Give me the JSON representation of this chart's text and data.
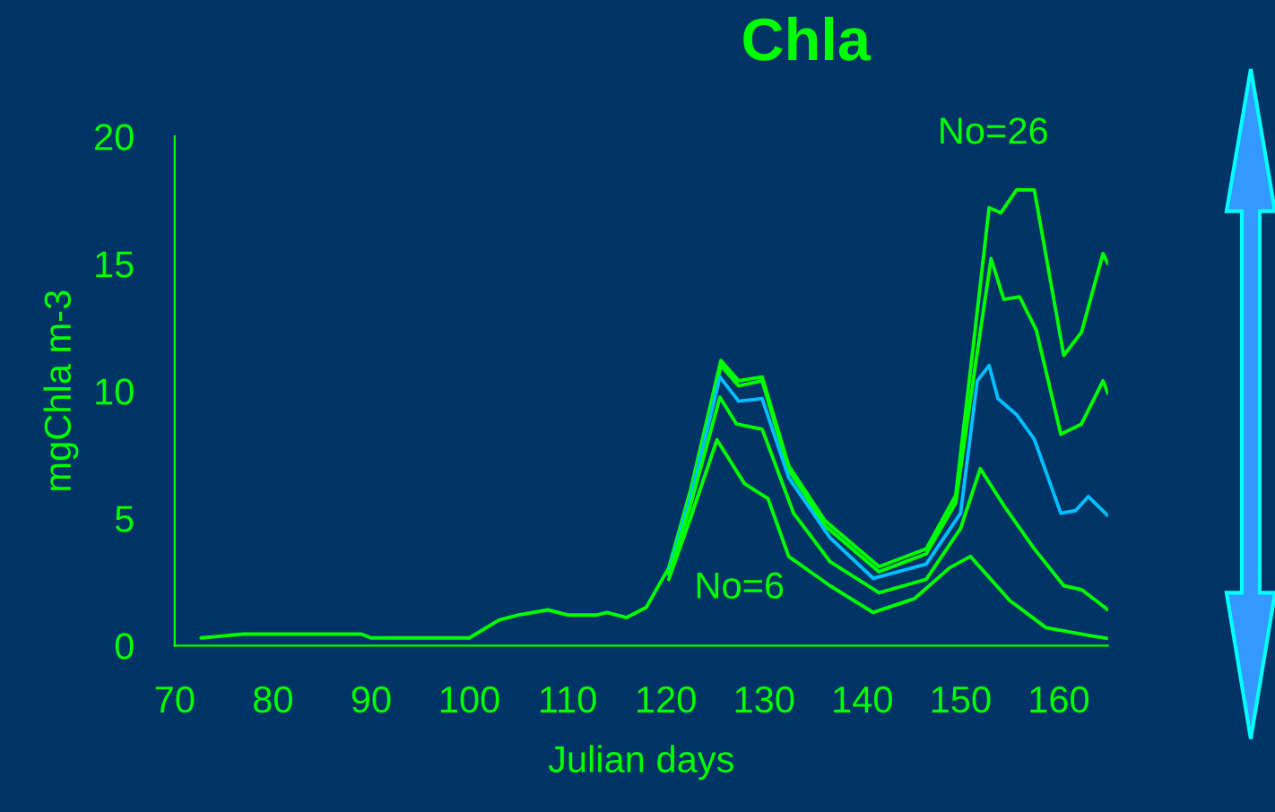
{
  "chart_data": {
    "type": "line",
    "title": "Chla",
    "xlabel": "Julian days",
    "ylabel": "mgChla m-3",
    "xlim": [
      70,
      165
    ],
    "ylim": [
      0,
      20
    ],
    "xticks": [
      70,
      80,
      90,
      100,
      110,
      120,
      130,
      140,
      150,
      160
    ],
    "yticks": [
      0,
      5,
      10,
      15,
      20
    ],
    "grid": false,
    "legend": false,
    "marker": "none",
    "line_style": "solid",
    "annotations": [
      "No=26",
      "No=6"
    ],
    "series": [
      {
        "color": "#00ff00",
        "x": [
          72.7,
          77,
          89,
          90,
          100,
          103,
          105,
          108,
          110,
          113,
          114,
          116,
          118,
          120.3,
          122.5,
          125.6,
          127.4,
          129.8,
          132.5,
          136.2,
          141.7,
          146.5,
          149.5,
          151.3,
          152.9,
          154.1,
          155.7,
          157.5,
          160.5,
          162.3,
          164.5,
          165
        ],
        "values": [
          0.3,
          0.45,
          0.45,
          0.3,
          0.3,
          1.0,
          1.2,
          1.4,
          1.2,
          1.2,
          1.3,
          1.1,
          1.5,
          3.06,
          6.1,
          11.2,
          10.4,
          10.55,
          7.07,
          4.9,
          3.1,
          3.8,
          5.9,
          11.8,
          17.2,
          17.0,
          17.9,
          17.9,
          11.4,
          12.3,
          15.4,
          15.0
        ]
      },
      {
        "color": "#00ff00",
        "x": [
          120.3,
          122.5,
          125.6,
          127.4,
          129.8,
          132.5,
          136.2,
          141.7,
          146.5,
          149.5,
          151.5,
          153.1,
          154.4,
          156,
          157.7,
          160.2,
          162.3,
          164.5,
          165
        ],
        "values": [
          3.0,
          5.9,
          11.0,
          10.2,
          10.4,
          6.9,
          4.7,
          2.9,
          3.6,
          5.6,
          11.0,
          15.2,
          13.6,
          13.7,
          12.4,
          8.3,
          8.7,
          10.4,
          9.9
        ]
      },
      {
        "color": "#00bfff",
        "x": [
          120.3,
          122.5,
          125.5,
          127.4,
          129.8,
          132.5,
          136.7,
          141.1,
          146.5,
          150,
          151.7,
          152.9,
          153.8,
          155.7,
          157.5,
          160.2,
          161.7,
          163,
          165
        ],
        "values": [
          2.9,
          5.8,
          10.55,
          9.6,
          9.7,
          6.6,
          4.24,
          2.64,
          3.2,
          5.2,
          10.4,
          11.0,
          9.7,
          9.07,
          8.1,
          5.2,
          5.3,
          5.85,
          5.1
        ]
      },
      {
        "color": "#00ff00",
        "x": [
          120.3,
          122.5,
          125.5,
          127.2,
          129.8,
          133,
          136.7,
          141.7,
          146.5,
          150,
          152,
          154.4,
          157.5,
          160.5,
          162.3,
          165
        ],
        "values": [
          2.8,
          5.5,
          9.75,
          8.7,
          8.5,
          5.2,
          3.3,
          2.07,
          2.6,
          4.6,
          6.95,
          5.5,
          3.8,
          2.35,
          2.2,
          1.4
        ]
      },
      {
        "color": "#00ff00",
        "x": [
          120.3,
          122.5,
          125.2,
          128,
          130.4,
          132.5,
          136.7,
          141.1,
          145.3,
          148.9,
          151,
          155,
          158.7,
          163,
          165
        ],
        "values": [
          2.6,
          5.0,
          8.08,
          6.36,
          5.77,
          3.5,
          2.35,
          1.3,
          1.84,
          3.06,
          3.5,
          1.77,
          0.7,
          0.4,
          0.28
        ]
      }
    ]
  }
}
